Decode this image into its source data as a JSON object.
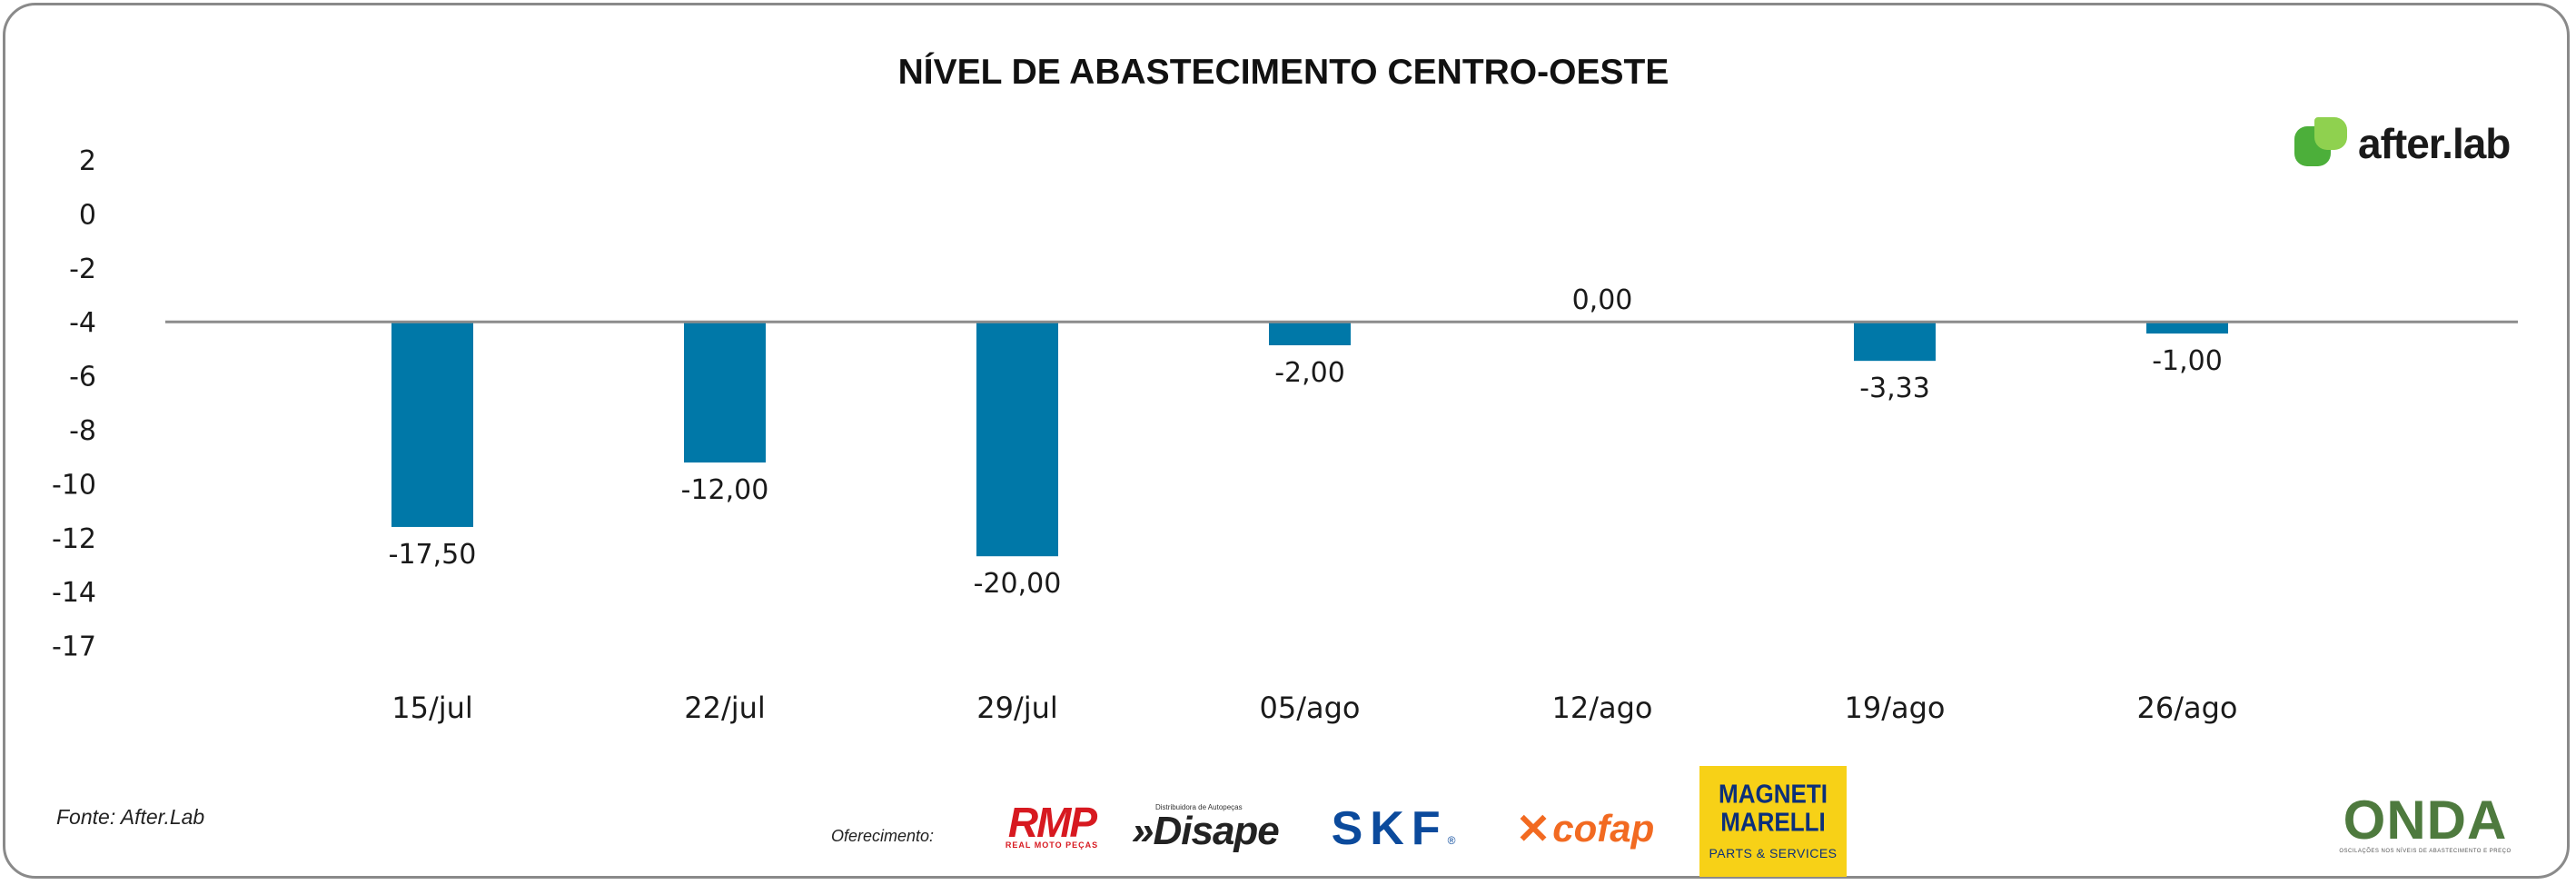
{
  "chart_data": {
    "type": "bar",
    "title": "NÍVEL DE ABASTECIMENTO CENTRO-OESTE",
    "categories": [
      "15/jul",
      "22/jul",
      "29/jul",
      "05/ago",
      "12/ago",
      "19/ago",
      "26/ago"
    ],
    "values": [
      -17.5,
      -12.0,
      -20.0,
      -2.0,
      0.0,
      -3.33,
      -1.0
    ],
    "value_labels": [
      "-17,50",
      "-12,00",
      "-20,00",
      "-2,00",
      "0,00",
      "-3,33",
      "-1,00"
    ],
    "y_tick_labels": [
      "2",
      "0",
      "-2",
      "-4",
      "-6",
      "-8",
      "-10",
      "-12",
      "-14",
      "-17"
    ],
    "baseline_tick": "-4",
    "xlabel": "",
    "ylabel": "",
    "grid": false,
    "colors": {
      "bar": "#0078a8",
      "baseline": "#8c8c8c"
    }
  },
  "footer": {
    "source": "Fonte: After.Lab",
    "sponsor_label": "Oferecimento:"
  },
  "logos": {
    "afterlab": "after.lab",
    "rmp": "RMP",
    "rmp_sub": "REAL MOTO PEÇAS",
    "disape": "Disape",
    "disape_sub": "Distribuidora de Autopeças",
    "skf": "SKF",
    "cofap": "cofap",
    "magneti": "MAGNETI MARELLI",
    "magneti_sub": "PARTS & SERVICES",
    "onda": "ONDA",
    "onda_sub": "OSCILAÇÕES NOS NÍVEIS DE ABASTECIMENTO E PREÇO"
  }
}
